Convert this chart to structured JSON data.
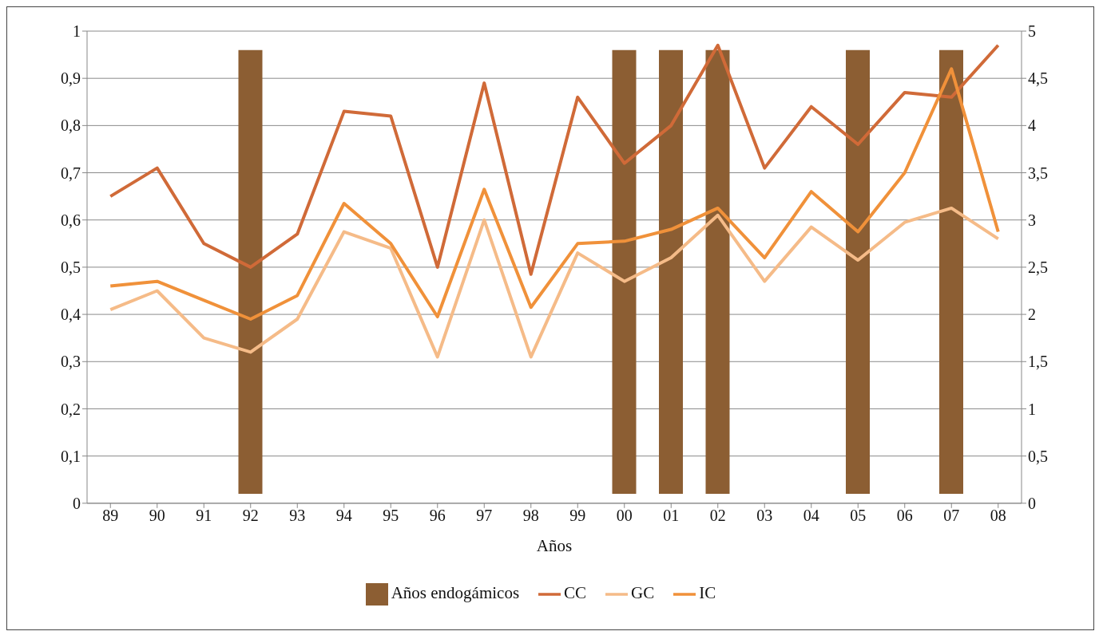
{
  "chart_data": {
    "type": "line",
    "xlabel": "Años",
    "categories": [
      "89",
      "90",
      "91",
      "92",
      "93",
      "94",
      "95",
      "96",
      "97",
      "98",
      "99",
      "00",
      "01",
      "02",
      "03",
      "04",
      "05",
      "06",
      "07",
      "08"
    ],
    "series": [
      {
        "name": "GC",
        "color": "#f5bb88",
        "values": [
          0.41,
          0.45,
          0.35,
          0.32,
          0.39,
          0.575,
          0.54,
          0.31,
          0.6,
          0.31,
          0.53,
          0.47,
          0.52,
          0.61,
          0.47,
          0.585,
          0.515,
          0.595,
          0.625,
          0.56
        ]
      },
      {
        "name": "CC",
        "color": "#d06a38",
        "values": [
          0.65,
          0.71,
          0.55,
          0.5,
          0.57,
          0.83,
          0.82,
          0.5,
          0.89,
          0.485,
          0.86,
          0.72,
          0.8,
          0.97,
          0.71,
          0.84,
          0.76,
          0.87,
          0.86,
          0.97
        ]
      },
      {
        "name": "IC",
        "color": "#f0913a",
        "values": [
          0.46,
          0.47,
          0.43,
          0.39,
          0.44,
          0.635,
          0.55,
          0.395,
          0.665,
          0.415,
          0.55,
          0.555,
          0.58,
          0.625,
          0.52,
          0.66,
          0.575,
          0.7,
          0.92,
          0.575
        ]
      },
      {
        "name": "Años endogámicos",
        "type": "bar",
        "axis": "y2",
        "color": "#8c5e33",
        "values": [
          null,
          null,
          null,
          4.7,
          null,
          null,
          null,
          null,
          null,
          null,
          null,
          4.7,
          4.7,
          4.7,
          null,
          null,
          4.7,
          null,
          4.7,
          null
        ],
        "base": [
          null,
          null,
          null,
          0.1,
          null,
          null,
          null,
          null,
          null,
          null,
          null,
          0.1,
          0.1,
          0.1,
          null,
          null,
          0.1,
          null,
          0.1,
          null
        ]
      }
    ],
    "ylim": [
      0,
      1
    ],
    "yticks": [
      0,
      {
        "value": 0.1,
        "label": "0,1"
      },
      {
        "value": 0.2,
        "label": "0,2"
      },
      {
        "value": 0.3,
        "label": "0,3"
      },
      {
        "value": 0.4,
        "label": "0,4"
      },
      {
        "value": 0.5,
        "label": "0,5"
      },
      {
        "value": 0.6,
        "label": "0,6"
      },
      {
        "value": 0.7,
        "label": "0,7"
      },
      {
        "value": 0.8,
        "label": "0,8"
      },
      {
        "value": 0.9,
        "label": "0,9"
      },
      1
    ],
    "y2lim": [
      0,
      5
    ],
    "y2ticks": [
      0,
      {
        "value": 0.5,
        "label": "0,5"
      },
      1,
      {
        "value": 1.5,
        "label": "1,5"
      },
      2,
      {
        "value": 2.5,
        "label": "2,5"
      },
      3,
      {
        "value": 3.5,
        "label": "3,5"
      },
      4,
      {
        "value": 4.5,
        "label": "4,5"
      },
      5
    ],
    "grid": "y",
    "legend": "bottom",
    "marker": "none",
    "line_style": "solid"
  }
}
